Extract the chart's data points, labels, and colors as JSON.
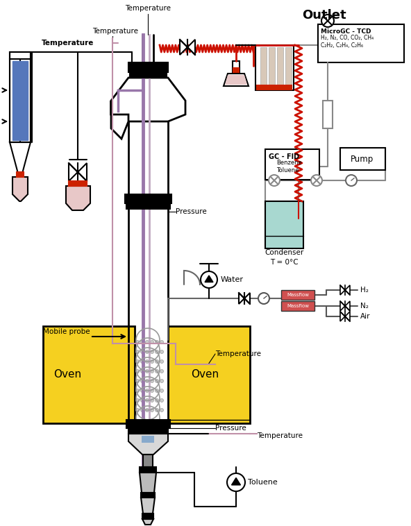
{
  "bg_color": "#ffffff",
  "outlet_label": "Outlet",
  "microgc_label": "MicroGC - TCD",
  "microgc_species": "H₂, N₂, CO, CO₂, CH₄\nC₂H₂, C₂H₄, C₂H₆",
  "gcfid_label": "GC - FID",
  "gcfid_species": "Benzene\nToluene",
  "pump_label": "Pump",
  "condenser_label": "Condenser",
  "condenser_temp": "T = 0°C",
  "oven_label": "Oven",
  "water_label": "Water",
  "massflow_label": "Massflow",
  "h2_label": "H₂",
  "n2_label": "N₂",
  "air_label": "Air",
  "pressure_label": "Pressure",
  "temperature_label": "Temperature",
  "mobile_probe_label": "Mobile probe",
  "toluene_label": "Toluene",
  "colors": {
    "blue_rect": "#5577bb",
    "yellow_oven": "#f5d020",
    "red_block": "#cc2200",
    "pink_line": "#c090a8",
    "purple_line": "#9977aa",
    "red_zigzag": "#cc1100",
    "condenser_fill": "#a8d8d0",
    "gray": "#888888",
    "black": "#000000",
    "white": "#ffffff",
    "light_gray": "#d0d0d0",
    "red_massflow": "#d05050",
    "bin_fill": "#e8c8c8"
  }
}
